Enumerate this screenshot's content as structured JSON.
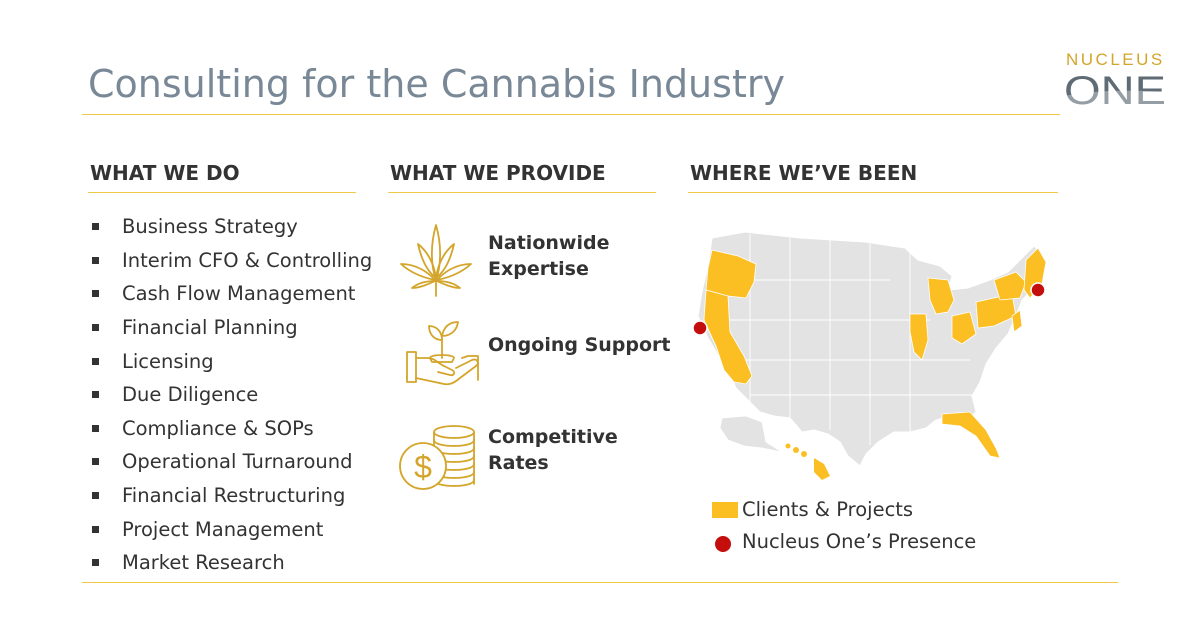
{
  "header": {
    "title": "Consulting for the Cannabis Industry",
    "logo_top": "NUCLEUS",
    "logo_bottom": "ONE"
  },
  "what_we_do": {
    "heading": "WHAT WE DO",
    "items": [
      "Business Strategy",
      "Interim CFO & Controlling",
      "Cash Flow Management",
      "Financial Planning",
      "Licensing",
      "Due Diligence",
      "Compliance & SOPs",
      "Operational Turnaround",
      "Financial Restructuring",
      "Project Management",
      "Market Research"
    ]
  },
  "what_we_provide": {
    "heading": "WHAT WE PROVIDE",
    "items": [
      {
        "line1": "Nationwide",
        "line2": "Expertise",
        "icon": "cannabis-leaf-icon"
      },
      {
        "line1": "Ongoing Support",
        "line2": "",
        "icon": "sprout-in-hand-icon"
      },
      {
        "line1": "Competitive",
        "line2": "Rates",
        "icon": "dollar-coins-icon"
      }
    ]
  },
  "where_weve_been": {
    "heading": "WHERE WE’VE BEEN",
    "legend": {
      "clients": "Clients & Projects",
      "presence": "Nucleus One’s Presence"
    }
  },
  "colors": {
    "accent_gold": "#fbbf24",
    "rule_gold": "#efc94a",
    "title_gray": "#798896",
    "map_gray": "#e3e3e3",
    "presence_red": "#c40d0d"
  }
}
